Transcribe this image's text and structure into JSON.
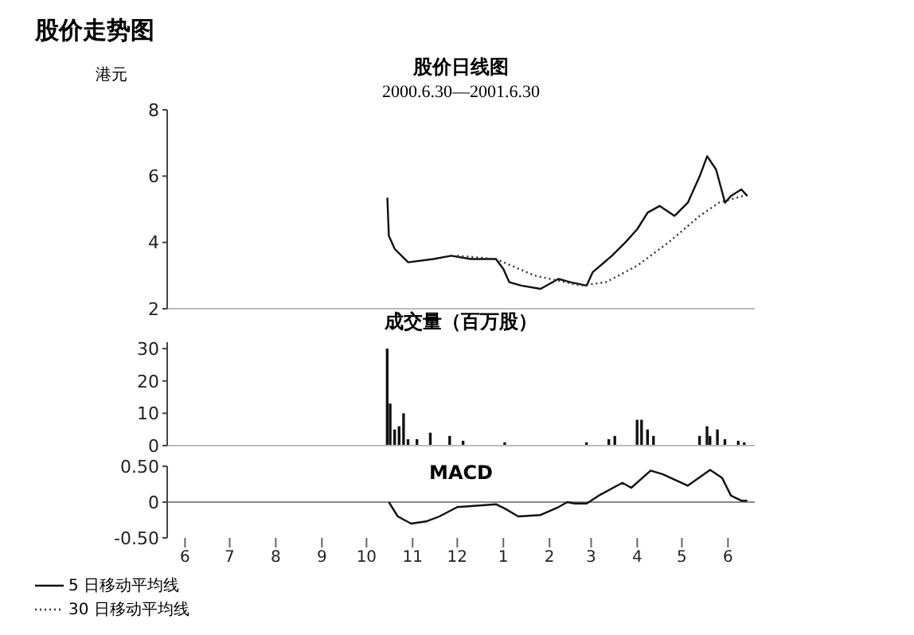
{
  "chart_data": [
    {
      "type": "line",
      "title": "股价日线图",
      "subtitle": "2000.6.30—2001.6.30",
      "ylabel": "港元",
      "annotations": [
        "股价走势图"
      ],
      "xlim": [
        "2000-06-03",
        "2001-07-03"
      ],
      "ylim": [
        2,
        8
      ],
      "yticks": [
        2,
        4,
        6,
        8
      ],
      "tick_labels": "y",
      "legend": "bottom left",
      "marker": "none",
      "series": [
        {
          "name": "5 日移动平均线",
          "color": "#111111",
          "line_style": "solid",
          "x": [
            "2000-10-29",
            "2000-10-30",
            "2000-11-03",
            "2000-11-12",
            "2000-11-29",
            "2000-12-11",
            "2000-12-24",
            "2001-01-10",
            "2001-01-15",
            "2001-01-19",
            "2001-01-27",
            "2001-02-09",
            "2001-02-21",
            "2001-03-01",
            "2001-03-12",
            "2001-03-16",
            "2001-03-29",
            "2001-04-07",
            "2001-04-15",
            "2001-04-22",
            "2001-04-30",
            "2001-05-10",
            "2001-05-19",
            "2001-05-27",
            "2001-06-01",
            "2001-06-07",
            "2001-06-13",
            "2001-06-17",
            "2001-06-24",
            "2001-06-28"
          ],
          "values": [
            5.35,
            4.2,
            3.8,
            3.4,
            3.5,
            3.6,
            3.5,
            3.5,
            3.2,
            2.8,
            2.7,
            2.6,
            2.9,
            2.8,
            2.7,
            3.1,
            3.6,
            4.0,
            4.4,
            4.9,
            5.1,
            4.8,
            5.2,
            6.0,
            6.6,
            6.2,
            5.2,
            5.4,
            5.6,
            5.4
          ]
        },
        {
          "name": "30 日移动平均线",
          "color": "#333333",
          "line_style": "dotted",
          "x": [
            "2000-12-15",
            "2001-01-10",
            "2001-02-05",
            "2001-03-08",
            "2001-03-25",
            "2001-04-15",
            "2001-05-06",
            "2001-05-27",
            "2001-06-09",
            "2001-06-25"
          ],
          "values": [
            3.6,
            3.5,
            3.0,
            2.7,
            2.8,
            3.3,
            4.0,
            4.8,
            5.2,
            5.4
          ]
        }
      ]
    },
    {
      "type": "bar",
      "title": "成交量（百万股）",
      "xlim": [
        "2000-06-03",
        "2001-07-03"
      ],
      "ylim": [
        0,
        32
      ],
      "yticks": [
        0,
        10,
        20,
        30
      ],
      "tick_labels": "y",
      "series": [
        {
          "color": "#111111",
          "x": [
            "2000-10-29",
            "2000-10-31",
            "2000-11-03",
            "2000-11-06",
            "2000-11-09",
            "2000-11-12",
            "2000-11-18",
            "2000-11-27",
            "2000-12-10",
            "2000-12-19",
            "2001-01-16",
            "2001-03-12",
            "2001-03-27",
            "2001-03-31",
            "2001-04-15",
            "2001-04-18",
            "2001-04-22",
            "2001-04-26",
            "2001-05-27",
            "2001-06-01",
            "2001-06-03",
            "2001-06-08",
            "2001-06-13",
            "2001-06-22",
            "2001-06-26"
          ],
          "values": [
            30,
            13,
            5,
            6,
            10,
            2,
            2,
            4,
            3,
            1.5,
            1,
            1,
            2,
            3,
            8,
            8,
            5,
            3,
            3,
            6,
            3,
            5,
            2,
            1.5,
            1
          ]
        }
      ]
    },
    {
      "type": "line",
      "title": "MACD",
      "xlim": [
        "2000-06-03",
        "2001-07-03"
      ],
      "xticks": [
        {
          "value": "2000-06-15",
          "label": "6"
        },
        {
          "value": "2000-07-15",
          "label": "7"
        },
        {
          "value": "2000-08-15",
          "label": "8"
        },
        {
          "value": "2000-09-15",
          "label": "9"
        },
        {
          "value": "2000-10-15",
          "label": "10"
        },
        {
          "value": "2000-11-15",
          "label": "11"
        },
        {
          "value": "2000-12-15",
          "label": "12"
        },
        {
          "value": "2001-01-15",
          "label": "1"
        },
        {
          "value": "2001-02-15",
          "label": "2"
        },
        {
          "value": "2001-03-15",
          "label": "3"
        },
        {
          "value": "2001-04-15",
          "label": "4"
        },
        {
          "value": "2001-05-15",
          "label": "5"
        },
        {
          "value": "2001-06-15",
          "label": "6"
        }
      ],
      "ylim": [
        -0.5,
        0.5
      ],
      "yticks": [
        {
          "value": -0.5,
          "label": "-0.50"
        },
        0,
        {
          "value": 0.5,
          "label": "0.50"
        }
      ],
      "marker": "none",
      "ref_lines": [
        {
          "axis": "y",
          "value": 0,
          "color": "#888888"
        }
      ],
      "series": [
        {
          "color": "#111111",
          "line_style": "solid",
          "x": [
            "2000-10-30",
            "2000-11-05",
            "2000-11-14",
            "2000-11-24",
            "2000-12-03",
            "2000-12-15",
            "2001-01-10",
            "2001-01-16",
            "2001-01-25",
            "2001-02-09",
            "2001-02-21",
            "2001-02-27",
            "2001-03-04",
            "2001-03-12",
            "2001-03-20",
            "2001-04-05",
            "2001-04-11",
            "2001-04-24",
            "2001-05-02",
            "2001-05-19",
            "2001-06-03",
            "2001-06-11",
            "2001-06-17",
            "2001-06-24",
            "2001-06-28"
          ],
          "values": [
            0,
            -0.2,
            -0.3,
            -0.27,
            -0.2,
            -0.07,
            -0.03,
            -0.09,
            -0.2,
            -0.18,
            -0.07,
            0,
            -0.02,
            -0.02,
            0.09,
            0.27,
            0.2,
            0.44,
            0.39,
            0.23,
            0.45,
            0.34,
            0.09,
            0.02,
            0.02
          ]
        }
      ]
    }
  ]
}
